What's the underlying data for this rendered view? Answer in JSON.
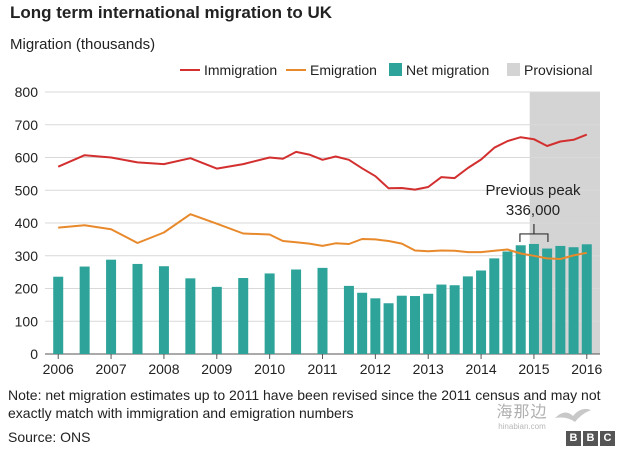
{
  "header": {
    "title": "Long term international migration to UK",
    "axis_title": "Migration (thousands)"
  },
  "legend": {
    "immigration": "Immigration",
    "emigration": "Emigration",
    "net": "Net migration",
    "provisional": "Provisional"
  },
  "annotation": {
    "line1": "Previous peak",
    "line2": "336,000"
  },
  "note": "Note: net migration estimates up to 2011 have been revised since the 2011 census and may not exactly match with immigration and emigration numbers",
  "source": "Source:  ONS",
  "logo": {
    "letters": [
      "B",
      "B",
      "C"
    ]
  },
  "watermark": {
    "big": "海那边",
    "small": "hinabian.com"
  },
  "colors": {
    "immigration": "#d32f2f",
    "emigration": "#e8892b",
    "net": "#2ea39a",
    "provisional": "#d4d4d4",
    "grid": "#d9d9d9"
  },
  "chart_data": {
    "type": "bar+line",
    "ylim": [
      0,
      800
    ],
    "yticks": [
      0,
      100,
      200,
      300,
      400,
      500,
      600,
      700,
      800
    ],
    "xlim": [
      2005.75,
      2016.25
    ],
    "xticks": [
      2006,
      2007,
      2008,
      2009,
      2010,
      2011,
      2012,
      2013,
      2014,
      2015,
      2016
    ],
    "provisional_range": [
      2014.92,
      2016.25
    ],
    "net_migration": [
      {
        "x": 2006.0,
        "y": 236
      },
      {
        "x": 2006.5,
        "y": 267
      },
      {
        "x": 2007.0,
        "y": 288
      },
      {
        "x": 2007.5,
        "y": 275
      },
      {
        "x": 2008.0,
        "y": 268
      },
      {
        "x": 2008.5,
        "y": 231
      },
      {
        "x": 2009.0,
        "y": 205
      },
      {
        "x": 2009.5,
        "y": 232
      },
      {
        "x": 2010.0,
        "y": 246
      },
      {
        "x": 2010.5,
        "y": 258
      },
      {
        "x": 2011.0,
        "y": 263
      },
      {
        "x": 2011.5,
        "y": 208
      },
      {
        "x": 2011.75,
        "y": 187
      },
      {
        "x": 2012.0,
        "y": 170
      },
      {
        "x": 2012.25,
        "y": 155
      },
      {
        "x": 2012.5,
        "y": 178
      },
      {
        "x": 2012.75,
        "y": 177
      },
      {
        "x": 2013.0,
        "y": 184
      },
      {
        "x": 2013.25,
        "y": 212
      },
      {
        "x": 2013.5,
        "y": 210
      },
      {
        "x": 2013.75,
        "y": 237
      },
      {
        "x": 2014.0,
        "y": 255
      },
      {
        "x": 2014.25,
        "y": 292
      },
      {
        "x": 2014.5,
        "y": 313
      },
      {
        "x": 2014.75,
        "y": 332
      },
      {
        "x": 2015.0,
        "y": 336
      },
      {
        "x": 2015.25,
        "y": 322
      },
      {
        "x": 2015.5,
        "y": 330
      },
      {
        "x": 2015.75,
        "y": 326
      },
      {
        "x": 2016.0,
        "y": 335
      }
    ],
    "immigration": [
      {
        "x": 2006.0,
        "y": 572
      },
      {
        "x": 2006.5,
        "y": 607
      },
      {
        "x": 2007.0,
        "y": 600
      },
      {
        "x": 2007.5,
        "y": 585
      },
      {
        "x": 2008.0,
        "y": 580
      },
      {
        "x": 2008.5,
        "y": 598
      },
      {
        "x": 2009.0,
        "y": 566
      },
      {
        "x": 2009.5,
        "y": 580
      },
      {
        "x": 2010.0,
        "y": 600
      },
      {
        "x": 2010.25,
        "y": 596
      },
      {
        "x": 2010.5,
        "y": 617
      },
      {
        "x": 2010.75,
        "y": 609
      },
      {
        "x": 2011.0,
        "y": 593
      },
      {
        "x": 2011.25,
        "y": 603
      },
      {
        "x": 2011.5,
        "y": 593
      },
      {
        "x": 2011.75,
        "y": 567
      },
      {
        "x": 2012.0,
        "y": 543
      },
      {
        "x": 2012.25,
        "y": 506
      },
      {
        "x": 2012.5,
        "y": 507
      },
      {
        "x": 2012.75,
        "y": 502
      },
      {
        "x": 2013.0,
        "y": 510
      },
      {
        "x": 2013.25,
        "y": 540
      },
      {
        "x": 2013.5,
        "y": 537
      },
      {
        "x": 2013.75,
        "y": 568
      },
      {
        "x": 2014.0,
        "y": 594
      },
      {
        "x": 2014.25,
        "y": 630
      },
      {
        "x": 2014.5,
        "y": 650
      },
      {
        "x": 2014.75,
        "y": 662
      },
      {
        "x": 2015.0,
        "y": 656
      },
      {
        "x": 2015.25,
        "y": 635
      },
      {
        "x": 2015.5,
        "y": 649
      },
      {
        "x": 2015.75,
        "y": 654
      },
      {
        "x": 2016.0,
        "y": 670
      }
    ],
    "emigration": [
      {
        "x": 2006.0,
        "y": 386
      },
      {
        "x": 2006.5,
        "y": 393
      },
      {
        "x": 2007.0,
        "y": 381
      },
      {
        "x": 2007.5,
        "y": 339
      },
      {
        "x": 2008.0,
        "y": 371
      },
      {
        "x": 2008.5,
        "y": 427
      },
      {
        "x": 2009.0,
        "y": 398
      },
      {
        "x": 2009.5,
        "y": 368
      },
      {
        "x": 2010.0,
        "y": 365
      },
      {
        "x": 2010.25,
        "y": 345
      },
      {
        "x": 2010.5,
        "y": 341
      },
      {
        "x": 2010.75,
        "y": 337
      },
      {
        "x": 2011.0,
        "y": 330
      },
      {
        "x": 2011.25,
        "y": 338
      },
      {
        "x": 2011.5,
        "y": 336
      },
      {
        "x": 2011.75,
        "y": 351
      },
      {
        "x": 2012.0,
        "y": 350
      },
      {
        "x": 2012.25,
        "y": 345
      },
      {
        "x": 2012.5,
        "y": 337
      },
      {
        "x": 2012.75,
        "y": 316
      },
      {
        "x": 2013.0,
        "y": 314
      },
      {
        "x": 2013.25,
        "y": 316
      },
      {
        "x": 2013.5,
        "y": 315
      },
      {
        "x": 2013.75,
        "y": 311
      },
      {
        "x": 2014.0,
        "y": 311
      },
      {
        "x": 2014.25,
        "y": 315
      },
      {
        "x": 2014.5,
        "y": 319
      },
      {
        "x": 2014.75,
        "y": 307
      },
      {
        "x": 2015.0,
        "y": 300
      },
      {
        "x": 2015.25,
        "y": 292
      },
      {
        "x": 2015.5,
        "y": 290
      },
      {
        "x": 2015.75,
        "y": 301
      },
      {
        "x": 2016.0,
        "y": 309
      }
    ],
    "previous_peak": {
      "x": 2015.0,
      "y": 336
    }
  }
}
